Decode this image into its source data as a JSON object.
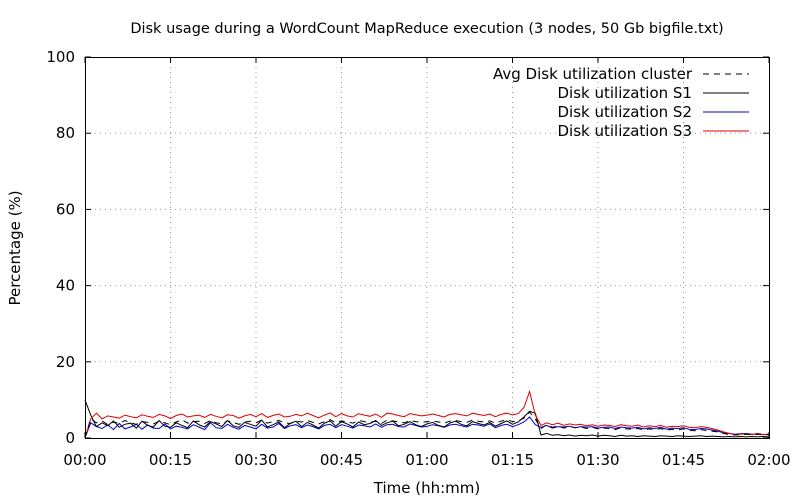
{
  "chart_data": {
    "type": "line",
    "title": "Disk usage during a WordCount MapReduce execution (3 nodes, 50 Gb bigfile.txt)",
    "xlabel": "Time (hh:mm)",
    "ylabel": "Percentage (%)",
    "xlim": [
      0,
      120
    ],
    "ylim": [
      0,
      100
    ],
    "x_ticks": [
      {
        "value": 0,
        "label": "00:00"
      },
      {
        "value": 15,
        "label": "00:15"
      },
      {
        "value": 30,
        "label": "00:30"
      },
      {
        "value": 45,
        "label": "00:45"
      },
      {
        "value": 60,
        "label": "01:00"
      },
      {
        "value": 75,
        "label": "01:15"
      },
      {
        "value": 90,
        "label": "01:30"
      },
      {
        "value": 105,
        "label": "01:45"
      },
      {
        "value": 120,
        "label": "02:00"
      }
    ],
    "y_ticks": [
      {
        "value": 0,
        "label": "0"
      },
      {
        "value": 20,
        "label": "20"
      },
      {
        "value": 40,
        "label": "40"
      },
      {
        "value": 60,
        "label": "60"
      },
      {
        "value": 80,
        "label": "80"
      },
      {
        "value": 100,
        "label": "100"
      }
    ],
    "grid": true,
    "legend_position": "top-right",
    "x": [
      0,
      1,
      2,
      3,
      4,
      5,
      6,
      7,
      8,
      9,
      10,
      11,
      12,
      13,
      14,
      15,
      16,
      17,
      18,
      19,
      20,
      21,
      22,
      23,
      24,
      25,
      26,
      27,
      28,
      29,
      30,
      31,
      32,
      33,
      34,
      35,
      36,
      37,
      38,
      39,
      40,
      41,
      42,
      43,
      44,
      45,
      46,
      47,
      48,
      49,
      50,
      51,
      52,
      53,
      54,
      55,
      56,
      57,
      58,
      59,
      60,
      61,
      62,
      63,
      64,
      65,
      66,
      67,
      68,
      69,
      70,
      71,
      72,
      73,
      74,
      75,
      76,
      77,
      78,
      79,
      80,
      81,
      82,
      83,
      84,
      85,
      86,
      87,
      88,
      89,
      90,
      91,
      92,
      93,
      94,
      95,
      96,
      97,
      98,
      99,
      100,
      101,
      102,
      103,
      104,
      105,
      106,
      107,
      108,
      109,
      110,
      111,
      112,
      113,
      114,
      115,
      116,
      117,
      118,
      119,
      120
    ],
    "series": [
      {
        "name": "Avg Disk utilization cluster",
        "color": "#000000",
        "style": "dashed",
        "values": [
          0,
          5,
          4,
          4.5,
          3.5,
          4.2,
          3.8,
          4.6,
          4,
          3.6,
          4.3,
          4.1,
          3.7,
          4.4,
          4,
          3.5,
          4.2,
          4.8,
          3.9,
          4.3,
          4.4,
          3.8,
          4.6,
          4,
          3.7,
          4.5,
          4.1,
          3.6,
          4.2,
          4.4,
          4,
          4.7,
          3.9,
          4.3,
          4.6,
          4,
          3.8,
          4.4,
          4.2,
          4.6,
          4.1,
          3.7,
          4.3,
          4.8,
          4,
          4.5,
          4.2,
          3.9,
          4.6,
          4.3,
          4.1,
          4.4,
          3.8,
          4.7,
          4.5,
          4.2,
          4,
          4.6,
          4.3,
          4.1,
          4.3,
          4.5,
          4.2,
          3.9,
          4.4,
          4.6,
          4.3,
          4.1,
          4.7,
          4.4,
          4.2,
          4.5,
          3.9,
          4.4,
          4.8,
          4.3,
          4.5,
          5.2,
          6.8,
          5,
          2.5,
          3.5,
          2.8,
          3.2,
          2.6,
          3,
          2.7,
          2.9,
          2.5,
          2.8,
          2.4,
          2.6,
          2.5,
          2.2,
          2.7,
          2.4,
          2.3,
          2.5,
          2.1,
          2.4,
          2.2,
          2.5,
          2,
          2.3,
          2.1,
          2.4,
          2,
          1.9,
          2.2,
          2,
          1.8,
          1.6,
          1.2,
          0.9,
          0.8,
          0.9,
          1,
          0.9,
          1,
          0.8,
          0.9
        ]
      },
      {
        "name": "Disk utilization S1",
        "color": "#000000",
        "style": "solid",
        "values": [
          10,
          6,
          3,
          4,
          3.2,
          4.5,
          2.8,
          3.6,
          3.9,
          2.6,
          4.4,
          3.3,
          2.9,
          4.6,
          3.1,
          2.8,
          4,
          3.3,
          2.7,
          4.5,
          3.5,
          2.9,
          4.3,
          3.7,
          3,
          4.6,
          3.2,
          2.8,
          4.1,
          3.6,
          3.1,
          4.7,
          2.9,
          3.5,
          4.2,
          2.7,
          3.8,
          4.4,
          3,
          4.1,
          3.4,
          2.6,
          3.9,
          4.5,
          3.1,
          4.3,
          3.7,
          2.9,
          4.2,
          3.5,
          3.8,
          4.6,
          3.3,
          4,
          4.4,
          3.2,
          3.6,
          4.3,
          3.5,
          3,
          3.7,
          4.1,
          3.3,
          2.9,
          3.9,
          4.4,
          3.6,
          3.2,
          4.3,
          3.8,
          3.4,
          4.1,
          3.1,
          3.8,
          4.5,
          3.6,
          4.2,
          5.5,
          7,
          6.5,
          0.8,
          1.2,
          0.7,
          0.9,
          0.6,
          0.8,
          0.5,
          0.7,
          0.6,
          0.8,
          0.5,
          0.7,
          0.6,
          0.4,
          0.7,
          0.5,
          0.6,
          0.4,
          0.6,
          0.5,
          0.4,
          0.6,
          0.5,
          0.4,
          0.6,
          0.5,
          0.4,
          0.5,
          0.6,
          0.4,
          0.5,
          0.4,
          0.3,
          0.4,
          0.3,
          0.4,
          0.3,
          0.4,
          0.3,
          0.4,
          0.3
        ]
      },
      {
        "name": "Disk utilization S2",
        "color": "#0000cc",
        "style": "solid",
        "values": [
          0,
          4,
          3,
          2.5,
          3.5,
          2.2,
          3.8,
          2.4,
          2.9,
          3.6,
          2.3,
          3.4,
          2.6,
          2.5,
          3.7,
          2.4,
          3.1,
          2.8,
          2.4,
          3.5,
          2.9,
          2.2,
          4,
          2.7,
          2.5,
          3.6,
          2.8,
          2.3,
          3.3,
          2.9,
          2.4,
          3.6,
          2.6,
          2.9,
          3.8,
          2.5,
          3.2,
          3.5,
          2.7,
          3.4,
          3,
          2.4,
          3.3,
          3.6,
          2.7,
          3.5,
          3.1,
          2.6,
          3.4,
          3.2,
          2.9,
          3.7,
          2.8,
          3.5,
          3.6,
          3,
          2.9,
          3.7,
          3.3,
          2.9,
          3.1,
          3.5,
          3.2,
          2.8,
          3.4,
          3.6,
          3.2,
          2.9,
          3.6,
          3.4,
          3.1,
          3.7,
          2.7,
          3.3,
          3.6,
          3,
          3.5,
          4.2,
          5.5,
          3.5,
          2.8,
          3.3,
          2.6,
          3,
          2.9,
          3.1,
          2.7,
          3,
          2.8,
          3,
          2.6,
          2.8,
          2.9,
          2.5,
          2.9,
          2.7,
          2.6,
          2.8,
          2.4,
          2.7,
          2.5,
          2.8,
          2.3,
          2.6,
          2.5,
          2.7,
          2.3,
          2.2,
          2.5,
          2.4,
          2.1,
          1.8,
          1.4,
          1.2,
          1,
          1.1,
          1.2,
          1,
          1.1,
          0.9,
          1
        ]
      },
      {
        "name": "Disk utilization S3",
        "color": "#dd0000",
        "style": "solid",
        "values": [
          0,
          5,
          6.5,
          5,
          5.8,
          5.5,
          5.2,
          6,
          5.6,
          5.3,
          6.1,
          5.7,
          5.4,
          6.2,
          5.8,
          5.1,
          5.9,
          6.3,
          5.5,
          5.8,
          6,
          5.4,
          6.2,
          5.7,
          5.3,
          6.1,
          5.9,
          5.2,
          5.8,
          6.2,
          5.6,
          6.4,
          5.4,
          5.9,
          6.3,
          5.5,
          5.7,
          6.2,
          5.8,
          6.5,
          5.9,
          5.3,
          6,
          6.6,
          5.6,
          6.4,
          5.8,
          5.5,
          6.4,
          6,
          5.7,
          6.3,
          5.4,
          6.5,
          6.3,
          5.9,
          5.6,
          6.4,
          6.1,
          5.8,
          6,
          6.3,
          5.9,
          5.5,
          6.2,
          6.4,
          6.1,
          5.8,
          6.5,
          6.2,
          5.9,
          6.3,
          5.6,
          6.2,
          6.5,
          6.1,
          6.4,
          8,
          12.2,
          6,
          3.3,
          4,
          3.5,
          3.9,
          3.3,
          3.7,
          3.4,
          3.6,
          3.2,
          3.5,
          3.1,
          3.4,
          3.3,
          3,
          3.5,
          3.2,
          3.1,
          3.4,
          2.9,
          3.2,
          3,
          3.3,
          2.8,
          3.1,
          3,
          3.2,
          2.8,
          2.7,
          3,
          2.8,
          2.5,
          2.1,
          1.6,
          1.2,
          0.9,
          1,
          1.1,
          0.9,
          1.2,
          0.9,
          1
        ]
      }
    ]
  }
}
